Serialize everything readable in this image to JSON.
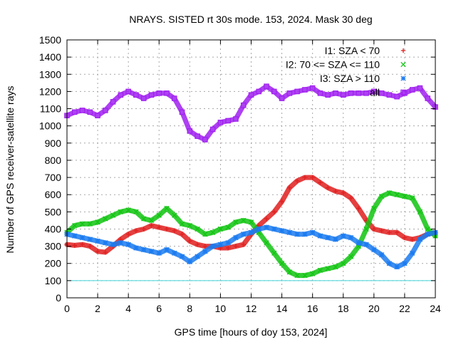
{
  "chart_data": {
    "type": "scatter",
    "title": "NRAYS. SISTED rt 30s mode. 153, 2024. Mask 30 deg",
    "xlabel": "GPS time [hours of doy 153, 2024]",
    "ylabel": "Number of GPS receiver-satellite rays",
    "xlim": [
      0,
      24
    ],
    "ylim": [
      0,
      1500
    ],
    "xticks": [
      0,
      2,
      4,
      6,
      8,
      10,
      12,
      14,
      16,
      18,
      20,
      22,
      24
    ],
    "yticks": [
      0,
      100,
      200,
      300,
      400,
      500,
      600,
      700,
      800,
      900,
      1000,
      1100,
      1200,
      1300,
      1400,
      1500
    ],
    "grid": true,
    "legend_position": "top-right",
    "threshold_line": {
      "y": 100,
      "color": "#3fd2d8"
    },
    "series": [
      {
        "name": "I1: SZA < 70",
        "label": "I1: SZA < 70",
        "marker": "+",
        "color": "#e01f1f",
        "x": [
          0,
          0.5,
          1,
          1.5,
          2,
          2.5,
          3,
          3.5,
          4,
          4.5,
          5,
          5.5,
          6,
          6.5,
          7,
          7.5,
          8,
          8.5,
          9,
          9.5,
          10,
          10.5,
          11,
          11.5,
          12,
          12.5,
          13,
          13.5,
          14,
          14.5,
          15,
          15.5,
          16,
          16.5,
          17,
          17.5,
          18,
          18.5,
          19,
          19.5,
          20,
          20.5,
          21,
          21.5,
          22,
          22.5,
          23,
          23.5,
          24
        ],
        "y": [
          310,
          305,
          310,
          300,
          270,
          265,
          300,
          340,
          370,
          390,
          400,
          420,
          410,
          400,
          390,
          370,
          330,
          310,
          300,
          300,
          290,
          290,
          300,
          310,
          370,
          420,
          460,
          500,
          560,
          640,
          680,
          700,
          700,
          670,
          640,
          620,
          610,
          580,
          520,
          450,
          400,
          390,
          380,
          380,
          350,
          340,
          350,
          370,
          380
        ]
      },
      {
        "name": "I2: 70 <= SZA <= 110",
        "label": "I2: 70 <= SZA <= 110",
        "marker": "x",
        "color": "#11c411",
        "x": [
          0,
          0.5,
          1,
          1.5,
          2,
          2.5,
          3,
          3.5,
          4,
          4.5,
          5,
          5.5,
          6,
          6.5,
          7,
          7.5,
          8,
          8.5,
          9,
          9.5,
          10,
          10.5,
          11,
          11.5,
          12,
          12.5,
          13,
          13.5,
          14,
          14.5,
          15,
          15.5,
          16,
          16.5,
          17,
          17.5,
          18,
          18.5,
          19,
          19.5,
          20,
          20.5,
          21,
          21.5,
          22,
          22.5,
          23,
          23.5,
          24
        ],
        "y": [
          380,
          420,
          430,
          430,
          440,
          460,
          480,
          500,
          510,
          500,
          460,
          450,
          480,
          520,
          480,
          430,
          420,
          400,
          370,
          380,
          400,
          410,
          440,
          450,
          440,
          380,
          320,
          260,
          200,
          150,
          130,
          130,
          140,
          160,
          170,
          180,
          200,
          240,
          300,
          400,
          520,
          590,
          610,
          600,
          590,
          580,
          500,
          400,
          360
        ]
      },
      {
        "name": "I3: SZA > 110",
        "label": "I3: SZA > 110",
        "marker": "*",
        "color": "#1b7bf0",
        "x": [
          0,
          0.5,
          1,
          1.5,
          2,
          2.5,
          3,
          3.5,
          4,
          4.5,
          5,
          5.5,
          6,
          6.5,
          7,
          7.5,
          8,
          8.5,
          9,
          9.5,
          10,
          10.5,
          11,
          11.5,
          12,
          12.5,
          13,
          13.5,
          14,
          14.5,
          15,
          15.5,
          16,
          16.5,
          17,
          17.5,
          18,
          18.5,
          19,
          19.5,
          20,
          20.5,
          21,
          21.5,
          22,
          22.5,
          23,
          23.5,
          24
        ],
        "y": [
          370,
          360,
          350,
          340,
          330,
          320,
          310,
          320,
          310,
          290,
          280,
          270,
          260,
          280,
          260,
          240,
          210,
          240,
          270,
          300,
          310,
          320,
          350,
          370,
          380,
          400,
          410,
          400,
          390,
          380,
          370,
          370,
          380,
          360,
          350,
          340,
          360,
          350,
          320,
          310,
          280,
          250,
          200,
          180,
          200,
          260,
          340,
          370,
          380
        ]
      },
      {
        "name": "all",
        "label": "all",
        "marker": "square",
        "color": "#a020f0",
        "x": [
          0,
          0.5,
          1,
          1.5,
          2,
          2.5,
          3,
          3.5,
          4,
          4.5,
          5,
          5.5,
          6,
          6.5,
          7,
          7.5,
          8,
          8.5,
          9,
          9.5,
          10,
          10.5,
          11,
          11.5,
          12,
          12.5,
          13,
          13.5,
          14,
          14.5,
          15,
          15.5,
          16,
          16.5,
          17,
          17.5,
          18,
          18.5,
          19,
          19.5,
          20,
          20.5,
          21,
          21.5,
          22,
          22.5,
          23,
          23.5,
          24
        ],
        "y": [
          1060,
          1080,
          1090,
          1080,
          1060,
          1090,
          1140,
          1180,
          1200,
          1180,
          1160,
          1180,
          1190,
          1190,
          1160,
          1080,
          970,
          940,
          920,
          980,
          1020,
          1030,
          1040,
          1120,
          1180,
          1200,
          1230,
          1200,
          1160,
          1190,
          1200,
          1210,
          1220,
          1190,
          1180,
          1190,
          1180,
          1190,
          1190,
          1190,
          1200,
          1190,
          1180,
          1170,
          1190,
          1210,
          1220,
          1160,
          1110
        ]
      }
    ]
  }
}
